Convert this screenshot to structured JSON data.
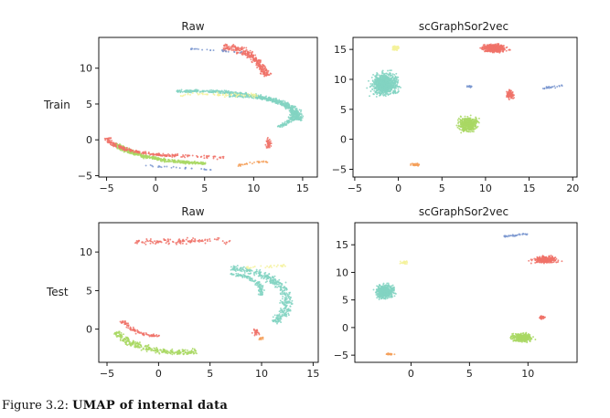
{
  "colors": {
    "red": "#f07268",
    "teal": "#83d3c2",
    "green": "#a9d864",
    "yellow": "#f4f29b",
    "blue": "#7b98d0",
    "orange": "#f4a05a"
  },
  "row_labels": [
    "Train",
    "Test"
  ],
  "caption": {
    "prefix": "Figure 3.2: ",
    "title": "UMAP of internal data"
  },
  "chart_data": [
    {
      "type": "scatter",
      "title": "Raw",
      "row": "Train",
      "xlim": [
        -5.8,
        16.5
      ],
      "ylim": [
        -5.2,
        14.3
      ],
      "xticks": [
        -5,
        0,
        5,
        10,
        15
      ],
      "yticks": [
        -5,
        0,
        5,
        10
      ],
      "clusters": [
        {
          "color": "red",
          "kind": "arc",
          "cx": 6.5,
          "cy": 7.5,
          "rx": 5,
          "ry": 5.5,
          "a0": 85,
          "a1": 15,
          "width": 0.8,
          "n": 300
        },
        {
          "color": "blue",
          "kind": "line",
          "pts": [
            [
              3,
              12.8
            ],
            [
              8.8,
              12.2
            ]
          ],
          "width": 0.2,
          "n": 25
        },
        {
          "color": "teal",
          "kind": "arc",
          "cx": 4,
          "cy": 3.3,
          "rx": 10.5,
          "ry": 3.5,
          "a0": 100,
          "a1": -10,
          "width": 0.9,
          "n": 550
        },
        {
          "color": "teal",
          "kind": "arc",
          "cx": 8,
          "cy": 3.5,
          "rx": 6,
          "ry": 2.6,
          "a0": 95,
          "a1": -40,
          "width": 0.6,
          "n": 250
        },
        {
          "color": "yellow",
          "kind": "line",
          "pts": [
            [
              2.5,
              6.4
            ],
            [
              10.5,
              6.2
            ]
          ],
          "width": 0.4,
          "n": 60
        },
        {
          "color": "green",
          "kind": "arc",
          "cx": 6,
          "cy": 0.5,
          "rx": 10.5,
          "ry": 3.8,
          "a0": 195,
          "a1": 265,
          "width": 0.8,
          "n": 450
        },
        {
          "color": "red",
          "kind": "arc",
          "cx": 3.5,
          "cy": 0.5,
          "rx": 8.5,
          "ry": 2.8,
          "a0": 185,
          "a1": 260,
          "width": 0.7,
          "n": 200
        },
        {
          "color": "red",
          "kind": "line",
          "pts": [
            [
              0,
              -2
            ],
            [
              7,
              -2.5
            ]
          ],
          "width": 0.4,
          "n": 60
        },
        {
          "color": "orange",
          "kind": "line",
          "pts": [
            [
              8.5,
              -3.5
            ],
            [
              11.5,
              -3
            ]
          ],
          "width": 0.3,
          "n": 30
        },
        {
          "color": "red",
          "kind": "blob",
          "cx": 11.5,
          "cy": -0.5,
          "rx": 0.5,
          "ry": 1.2,
          "n": 40
        },
        {
          "color": "blue",
          "kind": "line",
          "pts": [
            [
              -1,
              -3.6
            ],
            [
              6,
              -4.2
            ]
          ],
          "width": 0.2,
          "n": 30
        }
      ]
    },
    {
      "type": "scatter",
      "title": "scGraphSor2vec",
      "row": "Train",
      "xlim": [
        -5.2,
        20.5
      ],
      "ylim": [
        -6.3,
        17
      ],
      "xticks": [
        -5,
        0,
        5,
        10,
        15,
        20
      ],
      "yticks": [
        -5,
        0,
        5,
        10,
        15
      ],
      "clusters": [
        {
          "color": "teal",
          "kind": "blob",
          "cx": -1.5,
          "cy": 9.2,
          "rx": 2.5,
          "ry": 3,
          "n": 800
        },
        {
          "color": "yellow",
          "kind": "blob",
          "cx": -0.3,
          "cy": 15.2,
          "rx": 0.8,
          "ry": 0.6,
          "n": 60
        },
        {
          "color": "red",
          "kind": "blob",
          "cx": 11,
          "cy": 15.2,
          "rx": 2.2,
          "ry": 1.1,
          "n": 450
        },
        {
          "color": "red",
          "kind": "blob",
          "cx": 12.8,
          "cy": 7.5,
          "rx": 0.7,
          "ry": 1.1,
          "n": 120
        },
        {
          "color": "blue",
          "kind": "blob",
          "cx": 8.2,
          "cy": 8.8,
          "rx": 0.6,
          "ry": 0.3,
          "n": 20
        },
        {
          "color": "blue",
          "kind": "line",
          "pts": [
            [
              16.5,
              8.5
            ],
            [
              18.8,
              9
            ]
          ],
          "width": 0.25,
          "n": 25
        },
        {
          "color": "green",
          "kind": "blob",
          "cx": 8,
          "cy": 2.5,
          "rx": 1.8,
          "ry": 2,
          "n": 420
        },
        {
          "color": "orange",
          "kind": "blob",
          "cx": 2,
          "cy": -4.2,
          "rx": 1,
          "ry": 0.35,
          "n": 40
        }
      ]
    },
    {
      "type": "scatter",
      "title": "Raw",
      "row": "Test",
      "xlim": [
        -5.8,
        15.5
      ],
      "ylim": [
        -4.3,
        13.8
      ],
      "xticks": [
        -5,
        0,
        5,
        10,
        15
      ],
      "yticks": [
        0,
        5,
        10
      ],
      "clusters": [
        {
          "color": "red",
          "kind": "line",
          "pts": [
            [
              -2.2,
              11.3
            ],
            [
              7,
              11.5
            ]
          ],
          "width": 0.55,
          "n": 120
        },
        {
          "color": "teal",
          "kind": "arc",
          "cx": 7,
          "cy": 3.6,
          "rx": 5.5,
          "ry": 4.2,
          "a0": 90,
          "a1": -40,
          "width": 0.9,
          "n": 380
        },
        {
          "color": "teal",
          "kind": "arc",
          "cx": 7,
          "cy": 4.8,
          "rx": 3,
          "ry": 2.3,
          "a0": 90,
          "a1": -10,
          "width": 0.5,
          "n": 120
        },
        {
          "color": "yellow",
          "kind": "line",
          "pts": [
            [
              8.5,
              8
            ],
            [
              12.5,
              8.3
            ]
          ],
          "width": 0.3,
          "n": 25
        },
        {
          "color": "green",
          "kind": "arc",
          "cx": 2,
          "cy": 1,
          "rx": 6.5,
          "ry": 4,
          "a0": 200,
          "a1": 285,
          "width": 0.9,
          "n": 300
        },
        {
          "color": "red",
          "kind": "arc",
          "cx": 1,
          "cy": 1.5,
          "rx": 4.5,
          "ry": 2.5,
          "a0": 190,
          "a1": 260,
          "width": 0.6,
          "n": 90
        },
        {
          "color": "red",
          "kind": "blob",
          "cx": 9.5,
          "cy": -0.4,
          "rx": 0.6,
          "ry": 0.8,
          "n": 25
        },
        {
          "color": "orange",
          "kind": "blob",
          "cx": 10,
          "cy": -1.2,
          "rx": 0.4,
          "ry": 0.5,
          "n": 15
        }
      ]
    },
    {
      "type": "scatter",
      "title": "scGraphSor2vec",
      "row": "Test",
      "xlim": [
        -4.8,
        14.2
      ],
      "ylim": [
        -6.3,
        19
      ],
      "xticks": [
        0,
        5,
        10
      ],
      "yticks": [
        -5,
        0,
        5,
        10,
        15
      ],
      "clusters": [
        {
          "color": "teal",
          "kind": "blob",
          "cx": -2.2,
          "cy": 6.5,
          "rx": 1.3,
          "ry": 2,
          "n": 500
        },
        {
          "color": "yellow",
          "kind": "blob",
          "cx": -0.6,
          "cy": 11.8,
          "rx": 0.5,
          "ry": 0.5,
          "n": 30
        },
        {
          "color": "blue",
          "kind": "line",
          "pts": [
            [
              7.8,
              16.5
            ],
            [
              10,
              17
            ]
          ],
          "width": 0.3,
          "n": 40
        },
        {
          "color": "red",
          "kind": "blob",
          "cx": 11.5,
          "cy": 12.3,
          "rx": 1.7,
          "ry": 1,
          "n": 280
        },
        {
          "color": "green",
          "kind": "blob",
          "cx": 9.5,
          "cy": -1.8,
          "rx": 1.5,
          "ry": 1.3,
          "n": 300
        },
        {
          "color": "red",
          "kind": "blob",
          "cx": 11.2,
          "cy": 1.8,
          "rx": 0.4,
          "ry": 0.5,
          "n": 30
        },
        {
          "color": "orange",
          "kind": "blob",
          "cx": -1.8,
          "cy": -4.8,
          "rx": 0.5,
          "ry": 0.25,
          "n": 25
        }
      ]
    }
  ]
}
